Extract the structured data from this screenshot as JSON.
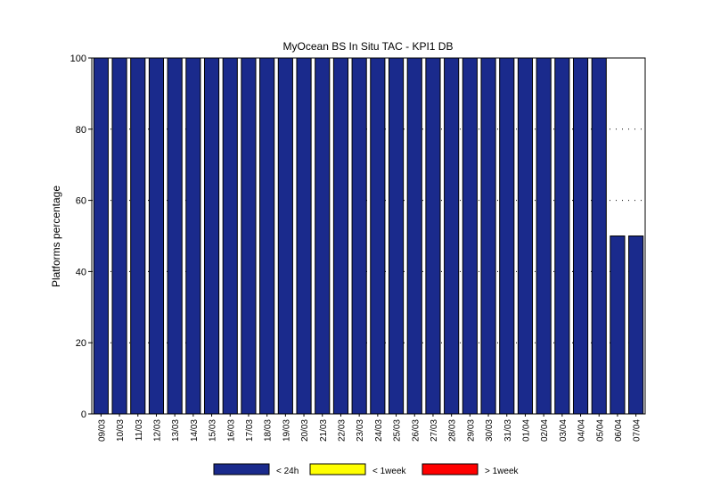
{
  "chart_data": {
    "type": "bar",
    "stacked": true,
    "title": "MyOcean  BS In Situ TAC - KPI1  DB",
    "xlabel": "",
    "ylabel": "Platforms percentage",
    "ylim": [
      0,
      100
    ],
    "yticks": [
      0,
      20,
      40,
      60,
      80,
      100
    ],
    "grid": true,
    "legend_position": "bottom",
    "categories": [
      "09/03",
      "10/03",
      "11/03",
      "12/03",
      "13/03",
      "14/03",
      "15/03",
      "16/03",
      "17/03",
      "18/03",
      "19/03",
      "20/03",
      "21/03",
      "22/03",
      "23/03",
      "24/03",
      "25/03",
      "26/03",
      "27/03",
      "28/03",
      "29/03",
      "30/03",
      "31/03",
      "01/04",
      "02/04",
      "03/04",
      "04/04",
      "05/04",
      "06/04",
      "07/04"
    ],
    "series": [
      {
        "name": "< 24h",
        "color": "#1a2a8c",
        "values": [
          100,
          100,
          100,
          100,
          100,
          100,
          100,
          100,
          100,
          100,
          100,
          100,
          100,
          100,
          100,
          100,
          100,
          100,
          100,
          100,
          100,
          100,
          100,
          100,
          100,
          100,
          100,
          100,
          50,
          50
        ]
      },
      {
        "name": "< 1week",
        "color": "#ffff00",
        "values": [
          0,
          0,
          0,
          0,
          0,
          0,
          0,
          0,
          0,
          0,
          0,
          0,
          0,
          0,
          0,
          0,
          0,
          0,
          0,
          0,
          0,
          0,
          0,
          0,
          0,
          0,
          0,
          0,
          0,
          0
        ]
      },
      {
        "name": "> 1week",
        "color": "#ff0000",
        "values": [
          0,
          0,
          0,
          0,
          0,
          0,
          0,
          0,
          0,
          0,
          0,
          0,
          0,
          0,
          0,
          0,
          0,
          0,
          0,
          0,
          0,
          0,
          0,
          0,
          0,
          0,
          0,
          0,
          0,
          0
        ]
      }
    ]
  }
}
